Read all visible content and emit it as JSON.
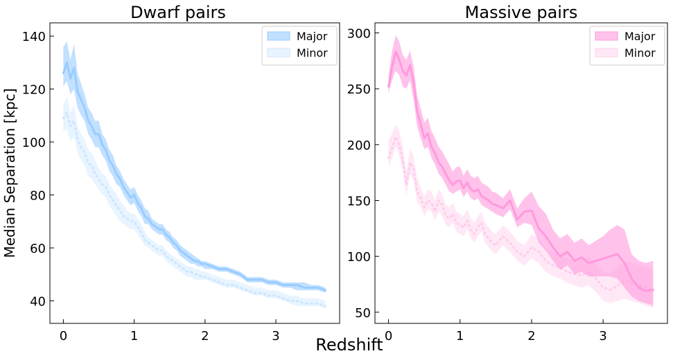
{
  "figure": {
    "xlabel": "Redshift",
    "ylabel": "Median Separation [kpc]"
  },
  "chart_data": [
    {
      "type": "line",
      "title": "Dwarf pairs",
      "xlim": [
        -0.19,
        3.9
      ],
      "ylim": [
        31.5,
        145
      ],
      "xticks": [
        0,
        1,
        2,
        3
      ],
      "yticks": [
        40,
        60,
        80,
        100,
        120,
        140
      ],
      "grid": false,
      "legend": "top-right",
      "x": [
        0.0,
        0.05,
        0.1,
        0.15,
        0.2,
        0.25,
        0.3,
        0.35,
        0.4,
        0.45,
        0.5,
        0.55,
        0.6,
        0.65,
        0.7,
        0.75,
        0.8,
        0.85,
        0.9,
        0.95,
        1.0,
        1.05,
        1.1,
        1.15,
        1.2,
        1.25,
        1.3,
        1.35,
        1.4,
        1.45,
        1.5,
        1.55,
        1.6,
        1.65,
        1.7,
        1.75,
        1.8,
        1.85,
        1.9,
        1.95,
        2.0,
        2.1,
        2.2,
        2.3,
        2.4,
        2.5,
        2.6,
        2.7,
        2.8,
        2.9,
        3.0,
        3.1,
        3.2,
        3.3,
        3.4,
        3.5,
        3.6,
        3.7
      ],
      "series": [
        {
          "name": "Major",
          "color": "#99ccff",
          "style": "solid",
          "values": [
            126,
            130,
            124,
            128,
            119,
            116,
            113,
            108,
            106,
            103,
            103,
            99,
            97,
            93,
            91,
            88,
            86,
            83,
            81,
            79,
            80,
            77,
            75,
            72,
            71,
            69,
            68,
            67,
            67,
            65,
            64,
            62,
            61,
            59,
            58,
            57,
            56,
            55,
            55,
            54,
            54,
            53,
            52,
            52,
            51,
            50,
            48,
            48,
            48,
            47,
            47,
            46,
            46,
            46,
            45,
            45,
            45,
            44
          ],
          "lower": [
            121,
            123,
            118,
            120,
            113,
            110,
            108,
            103,
            101,
            98,
            98,
            95,
            93,
            89,
            87,
            84,
            83,
            80,
            78,
            76,
            77,
            74,
            72,
            69,
            69,
            67,
            66,
            65,
            65,
            63,
            62,
            60,
            59,
            57,
            56,
            55,
            54,
            54,
            53,
            53,
            52,
            52,
            51,
            51,
            50,
            49,
            47,
            47,
            47,
            46,
            46,
            45,
            45,
            44,
            44,
            44,
            44,
            43
          ],
          "upper": [
            136,
            138,
            131,
            137,
            126,
            122,
            118,
            113,
            111,
            108,
            108,
            103,
            101,
            97,
            95,
            91,
            89,
            86,
            84,
            82,
            83,
            80,
            78,
            75,
            74,
            71,
            70,
            69,
            69,
            67,
            66,
            64,
            63,
            61,
            60,
            59,
            58,
            57,
            56,
            55,
            55,
            54,
            53,
            53,
            52,
            51,
            49,
            49,
            49,
            48,
            48,
            47,
            47,
            47,
            47,
            46,
            46,
            45
          ]
        },
        {
          "name": "Minor",
          "color": "#cce6ff",
          "style": "dotted",
          "values": [
            109,
            111,
            106,
            108,
            101,
            98,
            96,
            92,
            91,
            88,
            86,
            84,
            83,
            80,
            78,
            76,
            74,
            72,
            71,
            70,
            70,
            68,
            66,
            63,
            62,
            61,
            60,
            59,
            59,
            57,
            56,
            55,
            54,
            53,
            52,
            51,
            51,
            50,
            50,
            49,
            49,
            48,
            47,
            46,
            46,
            45,
            44,
            43,
            43,
            42,
            42,
            41,
            40,
            40,
            39,
            39,
            39,
            38
          ],
          "lower": [
            104,
            105,
            100,
            102,
            96,
            93,
            91,
            87,
            86,
            84,
            82,
            80,
            79,
            76,
            74,
            72,
            70,
            69,
            68,
            67,
            67,
            65,
            63,
            61,
            60,
            59,
            58,
            57,
            57,
            55,
            54,
            53,
            52,
            51,
            50,
            49,
            49,
            48,
            48,
            48,
            48,
            47,
            46,
            45,
            45,
            44,
            43,
            42,
            42,
            41,
            41,
            40,
            39,
            38,
            38,
            38,
            38,
            37
          ],
          "upper": [
            114,
            117,
            111,
            114,
            106,
            103,
            101,
            97,
            96,
            93,
            90,
            88,
            87,
            84,
            82,
            80,
            78,
            76,
            74,
            73,
            73,
            71,
            69,
            66,
            64,
            63,
            62,
            61,
            61,
            59,
            58,
            57,
            56,
            55,
            54,
            53,
            53,
            52,
            52,
            51,
            51,
            50,
            49,
            48,
            48,
            47,
            46,
            45,
            45,
            44,
            44,
            43,
            42,
            42,
            41,
            41,
            41,
            40
          ]
        }
      ]
    },
    {
      "type": "line",
      "title": "Massive pairs",
      "xlim": [
        -0.19,
        3.9
      ],
      "ylim": [
        40,
        309
      ],
      "xticks": [
        0,
        1,
        2,
        3
      ],
      "yticks": [
        50,
        100,
        150,
        200,
        250,
        300
      ],
      "grid": false,
      "legend": "top-right",
      "x": [
        0.0,
        0.05,
        0.1,
        0.15,
        0.2,
        0.25,
        0.3,
        0.35,
        0.4,
        0.45,
        0.5,
        0.55,
        0.6,
        0.65,
        0.7,
        0.75,
        0.8,
        0.85,
        0.9,
        0.95,
        1.0,
        1.05,
        1.1,
        1.15,
        1.2,
        1.25,
        1.3,
        1.35,
        1.4,
        1.45,
        1.5,
        1.6,
        1.7,
        1.8,
        1.9,
        2.0,
        2.1,
        2.2,
        2.3,
        2.4,
        2.5,
        2.6,
        2.7,
        2.8,
        2.9,
        3.0,
        3.1,
        3.2,
        3.3,
        3.4,
        3.5,
        3.6,
        3.7
      ],
      "series": [
        {
          "name": "Major",
          "color": "#ff99dd",
          "style": "solid",
          "values": [
            252,
            270,
            283,
            276,
            266,
            262,
            271,
            256,
            230,
            218,
            206,
            210,
            198,
            192,
            184,
            180,
            174,
            168,
            164,
            167,
            168,
            161,
            166,
            160,
            158,
            160,
            154,
            152,
            150,
            147,
            146,
            143,
            150,
            133,
            140,
            141,
            125,
            118,
            108,
            100,
            104,
            96,
            99,
            94,
            96,
            98,
            100,
            102,
            94,
            80,
            72,
            69,
            70
          ],
          "lower": [
            246,
            258,
            266,
            262,
            252,
            250,
            258,
            240,
            216,
            206,
            196,
            198,
            188,
            182,
            174,
            170,
            164,
            158,
            156,
            158,
            160,
            153,
            158,
            152,
            150,
            152,
            146,
            144,
            142,
            140,
            138,
            135,
            142,
            126,
            130,
            128,
            112,
            105,
            96,
            88,
            92,
            84,
            86,
            82,
            82,
            82,
            82,
            80,
            72,
            64,
            60,
            58,
            56
          ],
          "upper": [
            262,
            284,
            298,
            292,
            280,
            276,
            284,
            270,
            244,
            232,
            220,
            224,
            212,
            206,
            198,
            194,
            188,
            182,
            176,
            180,
            180,
            172,
            178,
            172,
            170,
            172,
            166,
            164,
            162,
            158,
            157,
            152,
            160,
            143,
            152,
            158,
            145,
            138,
            124,
            116,
            120,
            112,
            116,
            110,
            114,
            118,
            124,
            128,
            124,
            102,
            96,
            94,
            96
          ]
        },
        {
          "name": "Minor",
          "color": "#ffcceb",
          "style": "dotted",
          "values": [
            188,
            197,
            207,
            200,
            186,
            164,
            184,
            178,
            158,
            152,
            144,
            150,
            148,
            140,
            150,
            146,
            136,
            134,
            138,
            130,
            128,
            126,
            132,
            124,
            120,
            126,
            130,
            120,
            116,
            112,
            110,
            118,
            112,
            104,
            100,
            108,
            104,
            96,
            92,
            90,
            86,
            84,
            83,
            86,
            80,
            72,
            70,
            74,
            78,
            76,
            74,
            72,
            70
          ],
          "lower": [
            180,
            188,
            198,
            190,
            176,
            154,
            174,
            168,
            148,
            144,
            136,
            142,
            140,
            132,
            140,
            136,
            128,
            126,
            130,
            122,
            120,
            118,
            124,
            116,
            112,
            118,
            122,
            112,
            108,
            104,
            102,
            110,
            104,
            96,
            92,
            98,
            94,
            86,
            82,
            80,
            76,
            74,
            72,
            74,
            68,
            60,
            58,
            60,
            62,
            60,
            58,
            56,
            54
          ],
          "upper": [
            204,
            210,
            218,
            212,
            198,
            176,
            196,
            190,
            170,
            162,
            154,
            160,
            158,
            150,
            160,
            156,
            146,
            144,
            148,
            140,
            138,
            136,
            142,
            134,
            130,
            136,
            140,
            130,
            126,
            122,
            120,
            128,
            122,
            114,
            110,
            120,
            116,
            108,
            104,
            102,
            98,
            96,
            96,
            100,
            94,
            86,
            84,
            90,
            96,
            94,
            92,
            90,
            88
          ]
        }
      ]
    }
  ]
}
